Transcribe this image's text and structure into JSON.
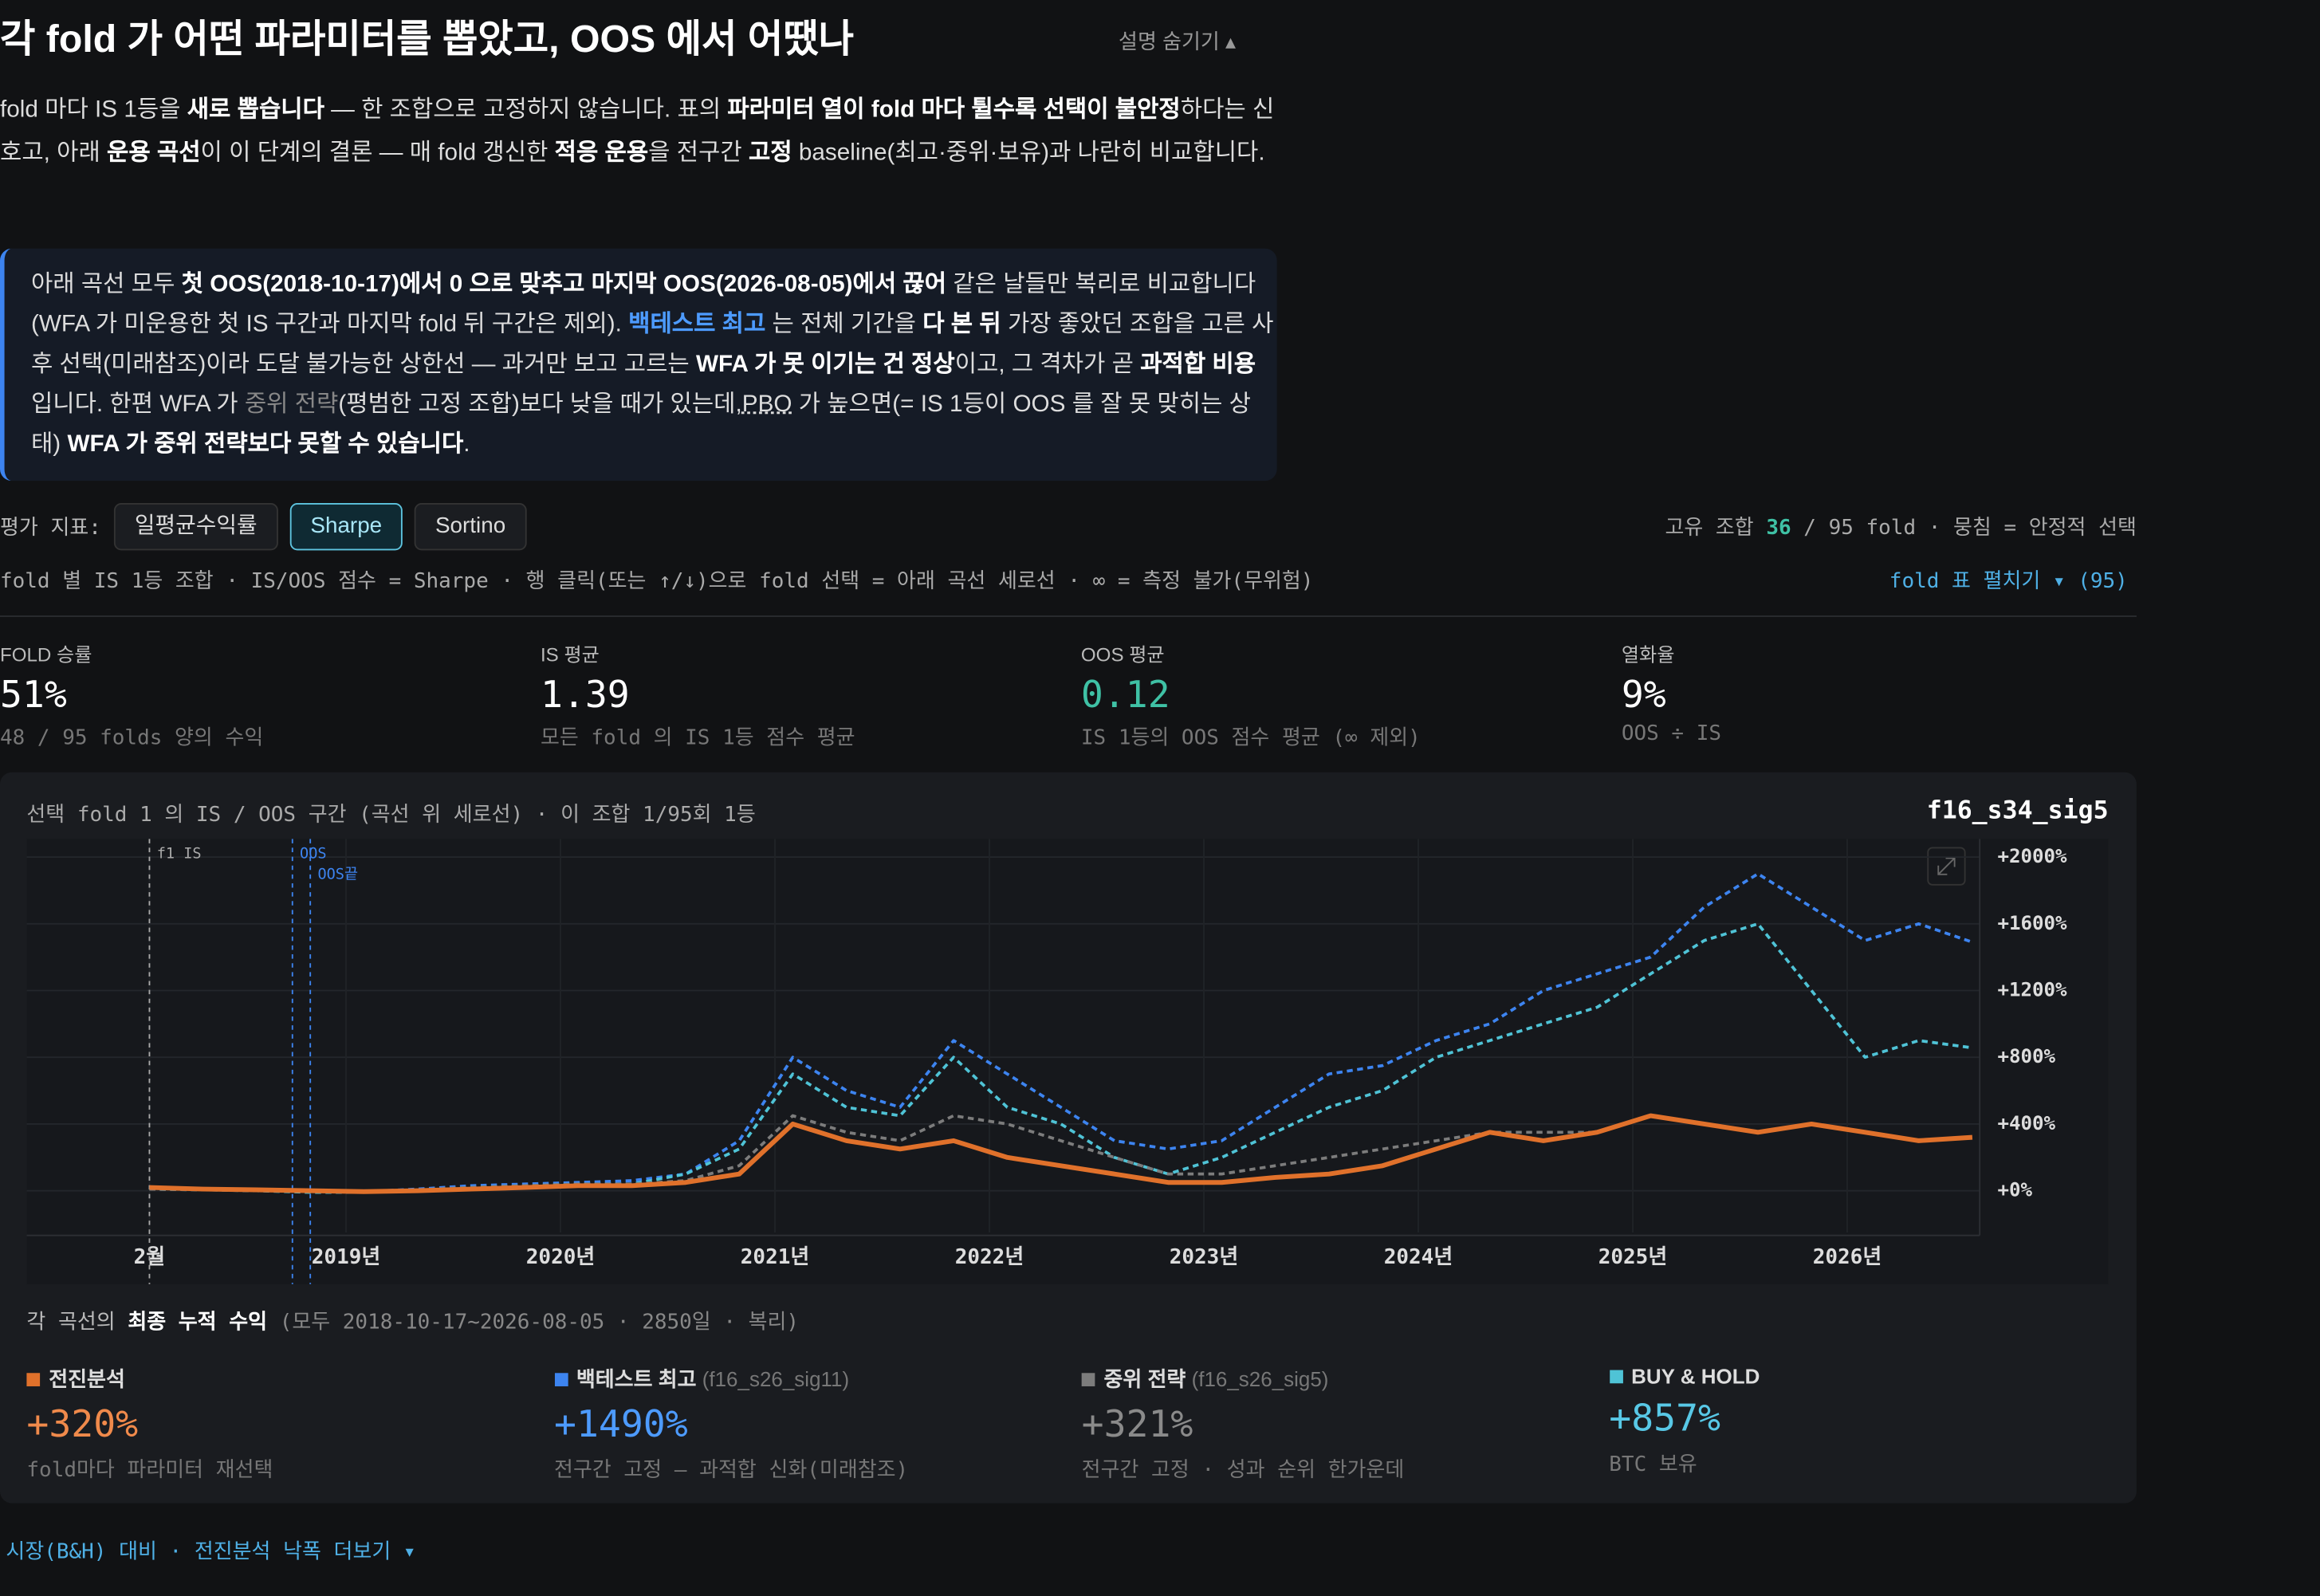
{
  "header": {
    "title": "각 fold 가 어떤 파라미터를 뽑았고, OOS 에서 어땠나",
    "toggle": "설명 숨기기 ▴"
  },
  "intro": [
    {
      "text": "fold 마다 IS 1등을 ",
      "style": "n"
    },
    {
      "text": "새로 뽑습니다",
      "style": "b"
    },
    {
      "text": " — 한 조합으로 고정하지 않습니다. 표의 ",
      "style": "n"
    },
    {
      "text": "파라미터 열이 fold 마다 튈수록 선택이 불안정",
      "style": "b"
    },
    {
      "text": "하다는 신호고, 아래 ",
      "style": "n"
    },
    {
      "text": "운용 곡선",
      "style": "b"
    },
    {
      "text": "이 이 단계의 결론 — 매 fold 갱신한 ",
      "style": "n"
    },
    {
      "text": "적응 운용",
      "style": "b"
    },
    {
      "text": "을 전구간 ",
      "style": "n"
    },
    {
      "text": "고정",
      "style": "b"
    },
    {
      "text": " baseline(최고·중위·보유)과 나란히 비교합니다.",
      "style": "n"
    }
  ],
  "callout": [
    {
      "text": "아래 곡선 모두 ",
      "style": "n"
    },
    {
      "text": "첫 OOS(2018-10-17)에서 0 으로 맞추고 마지막 OOS(2026-08-05)에서 끊어",
      "style": "b"
    },
    {
      "text": " 같은 날들만 복리로 비교합니다(WFA 가 미운용한 첫 IS 구간과 마지막 fold 뒤 구간은 제외). ",
      "style": "n"
    },
    {
      "text": "백테스트 최고",
      "style": "link"
    },
    {
      "text": " 는 전체 기간을 ",
      "style": "n"
    },
    {
      "text": "다 본 뒤",
      "style": "b"
    },
    {
      "text": " 가장 좋았던 조합을 고른 사후 선택(미래참조)이라 도달 불가능한 상한선 — 과거만 보고 고르는 ",
      "style": "n"
    },
    {
      "text": "WFA 가 못 이기는 건 정상",
      "style": "b"
    },
    {
      "text": "이고, 그 격차가 곧 ",
      "style": "n"
    },
    {
      "text": "과적합 비용",
      "style": "b"
    },
    {
      "text": "입니다. 한편 WFA 가 ",
      "style": "n"
    },
    {
      "text": "중위 전략",
      "style": "muted"
    },
    {
      "text": "(평범한 고정 조합)보다 낮을 때가 있는데,",
      "style": "n"
    },
    {
      "text": "PBO",
      "style": "u"
    },
    {
      "text": " 가 높으면(= IS 1등이 OOS 를 잘 못 맞히는 상태) ",
      "style": "n"
    },
    {
      "text": "WFA 가 중위 전략보다 못할 수 있습니다",
      "style": "b"
    },
    {
      "text": ".",
      "style": "n"
    }
  ],
  "metric": {
    "label": "평가 지표:",
    "options": [
      "일평균수익률",
      "Sharpe",
      "Sortino"
    ],
    "selected": "Sharpe"
  },
  "summary_right": [
    {
      "text": "고유 조합 ",
      "style": "n"
    },
    {
      "text": "36",
      "style": "teal"
    },
    {
      "text": " / 95 fold · 뭉침 = 안정적 선택",
      "style": "n"
    }
  ],
  "hint": "fold 별 IS 1등 조합 · IS/OOS 점수 = Sharpe · 행 클릭(또는 ↑/↓)으로 fold 선택 = 아래 곡선 세로선 · ∞ = 측정 불가(무위험)",
  "expand_link": "fold 표 펼치기 ▾ (95)",
  "stats": [
    {
      "label": "FOLD 승률",
      "value": "51%",
      "sub": "48 / 95 folds 양의 수익",
      "accent": false
    },
    {
      "label": "IS 평균",
      "value": "1.39",
      "sub": "모든 fold 의 IS 1등 점수 평균",
      "accent": false
    },
    {
      "label": "OOS 평균",
      "value": "0.12",
      "sub": "IS 1등의 OOS 점수 평균 (∞ 제외)",
      "accent": true
    },
    {
      "label": "열화율",
      "value": "9%",
      "sub": "OOS ÷ IS",
      "accent": false
    }
  ],
  "chart_data": {
    "type": "line",
    "caption": "선택 fold 1 의 IS / OOS 구간 (곡선 위 세로선) · 이 조합 1/95회 1등",
    "combo": "f16_s34_sig5",
    "x": [
      "2018-02",
      "2018-05",
      "2018-08",
      "2018-11",
      "2019-02",
      "2019-05",
      "2019-08",
      "2019-11",
      "2020-02",
      "2020-05",
      "2020-08",
      "2020-11",
      "2021-02",
      "2021-05",
      "2021-08",
      "2021-11",
      "2022-02",
      "2022-05",
      "2022-08",
      "2022-11",
      "2023-02",
      "2023-05",
      "2023-08",
      "2023-11",
      "2024-02",
      "2024-05",
      "2024-08",
      "2024-11",
      "2025-02",
      "2025-05",
      "2025-08",
      "2025-11",
      "2026-02",
      "2026-05",
      "2026-08"
    ],
    "series": [
      {
        "name": "백테스트 최고",
        "param": "(f16_s26_sig11)",
        "color": "#3d84f0",
        "text_color": "#4d9bff",
        "dash": true,
        "values": [
          10,
          10,
          0,
          0,
          -5,
          10,
          30,
          40,
          50,
          60,
          100,
          300,
          800,
          600,
          500,
          900,
          700,
          500,
          300,
          250,
          300,
          500,
          700,
          750,
          900,
          1000,
          1200,
          1300,
          1400,
          1700,
          1900,
          1700,
          1500,
          1600,
          1490
        ],
        "final": 1490,
        "final_label": "+1490%",
        "desc": "전구간 고정 — 과적합 신화(미래참조)"
      },
      {
        "name": "BUY & HOLD",
        "param": null,
        "color": "#4fc3d6",
        "text_color": "#58c8e6",
        "dash": true,
        "values": [
          10,
          5,
          0,
          -10,
          -10,
          0,
          20,
          30,
          40,
          40,
          100,
          250,
          700,
          500,
          450,
          800,
          500,
          400,
          200,
          100,
          200,
          350,
          500,
          600,
          800,
          900,
          1000,
          1100,
          1300,
          1500,
          1600,
          1200,
          800,
          900,
          857
        ],
        "final": 857,
        "final_label": "+857%",
        "desc": "BTC 보유"
      },
      {
        "name": "중위 전략",
        "param": "(f16_s26_sig5)",
        "color": "#7c7c7c",
        "text_color": "#8a8a8a",
        "dash": true,
        "values": [
          10,
          5,
          0,
          0,
          -5,
          5,
          20,
          30,
          40,
          40,
          60,
          150,
          450,
          350,
          300,
          450,
          400,
          300,
          200,
          100,
          100,
          150,
          200,
          250,
          300,
          350,
          350,
          350,
          450,
          400,
          350,
          400,
          350,
          300,
          321
        ],
        "final": 321,
        "final_label": "+321%",
        "desc": "전구간 고정 · 성과 순위 한가운데"
      },
      {
        "name": "전진분석",
        "param": null,
        "color": "#e0712b",
        "text_color": "#f08a4b",
        "dash": false,
        "values": [
          20,
          10,
          5,
          0,
          -5,
          0,
          10,
          20,
          30,
          30,
          50,
          100,
          400,
          300,
          250,
          300,
          200,
          150,
          100,
          50,
          50,
          80,
          100,
          150,
          250,
          350,
          300,
          350,
          450,
          400,
          350,
          400,
          350,
          300,
          320
        ],
        "final": 320,
        "final_label": "+320%",
        "desc": "fold마다 파라미터 재선택"
      }
    ],
    "summary_order": [
      3,
      0,
      2,
      1
    ],
    "ylim": [
      -250,
      2100
    ],
    "yticks": [
      {
        "value": 0,
        "label": "+0%"
      },
      {
        "value": 400,
        "label": "+400%"
      },
      {
        "value": 800,
        "label": "+800%"
      },
      {
        "value": 1200,
        "label": "+1200%"
      },
      {
        "value": 1600,
        "label": "+1600%"
      },
      {
        "value": 2000,
        "label": "+2000%"
      }
    ],
    "xticks": [
      {
        "value": "2018-02",
        "label": "2월"
      },
      {
        "value": "2019-01",
        "label": "2019년"
      },
      {
        "value": "2020-01",
        "label": "2020년"
      },
      {
        "value": "2021-01",
        "label": "2021년"
      },
      {
        "value": "2022-01",
        "label": "2022년"
      },
      {
        "value": "2023-01",
        "label": "2023년"
      },
      {
        "value": "2024-01",
        "label": "2024년"
      },
      {
        "value": "2025-01",
        "label": "2025년"
      },
      {
        "value": "2026-01",
        "label": "2026년"
      }
    ],
    "markers": [
      {
        "label": "f1 IS",
        "x": "2018-02",
        "color": "#aaaaaa"
      },
      {
        "label": "OOS",
        "x": "2018-10",
        "color": "#3d84f0"
      },
      {
        "label": "OOS끝",
        "x": "2018-11",
        "color": "#3d84f0"
      }
    ],
    "grid": true
  },
  "final_caption": [
    {
      "text": "각 곡선의 ",
      "style": "n"
    },
    {
      "text": "최종 누적 수익",
      "style": "b"
    },
    {
      "text": " (모두 2018-10-17~2026-08-05 · 2850일 · 복리)",
      "style": "muted"
    }
  ],
  "footer_link": "시장(B&H) 대비 · 전진분석 낙폭 더보기 ▾"
}
